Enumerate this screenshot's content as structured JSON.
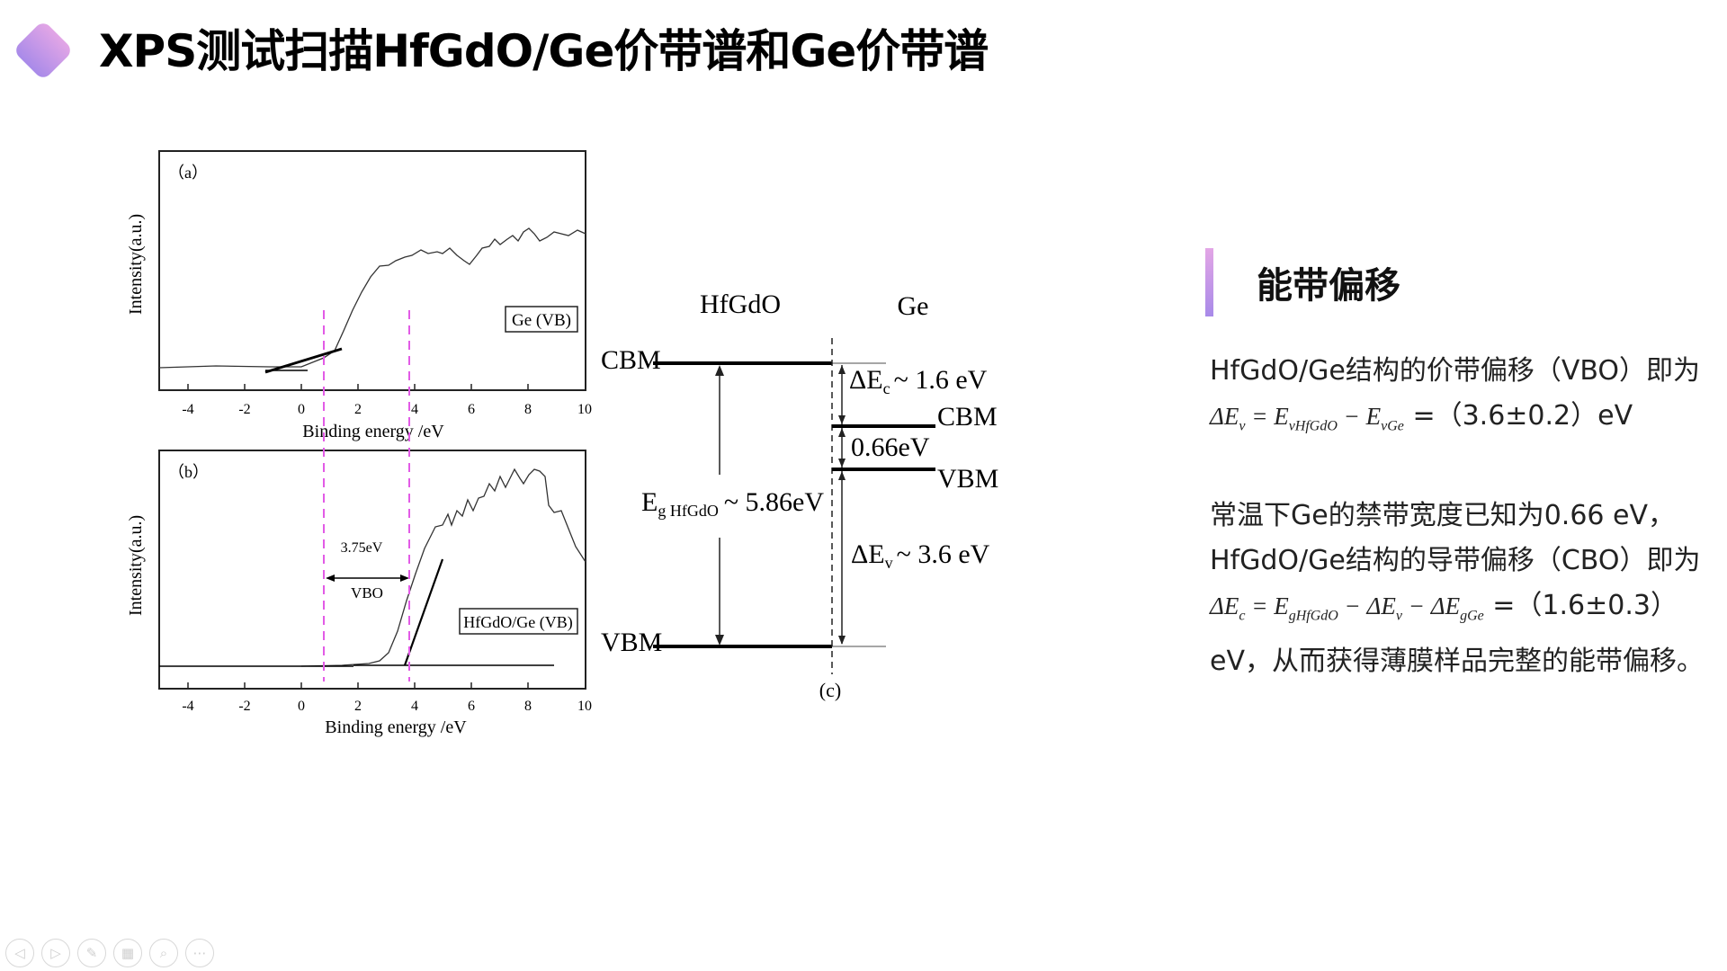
{
  "slide": {
    "title": "XPS测试扫描HfGdO/Ge价带谱和Ge价带谱",
    "accent_colors": [
      "#e3a6e6",
      "#a88ae9"
    ]
  },
  "figure": {
    "panel_a": {
      "label": "（a）",
      "ylabel": "Intensity(a.u.)",
      "xlabel": "Binding energy /eV",
      "xticks": [
        "-4",
        "-2",
        "0",
        "2",
        "4",
        "6",
        "8",
        "10"
      ],
      "legend": "Ge (VB)"
    },
    "panel_b": {
      "label": "（b）",
      "ylabel": "Intensity(a.u.)",
      "xlabel": "Binding energy /eV",
      "xticks": [
        "-4",
        "-2",
        "0",
        "2",
        "4",
        "6",
        "8",
        "10"
      ],
      "legend": "HfGdO/Ge (VB)",
      "gap_value": "3.75eV",
      "gap_label": "VBO"
    },
    "panel_c": {
      "label": "(c)",
      "left_material": "HfGdO",
      "right_material": "Ge",
      "left_cbm": "CBM",
      "left_vbm": "VBM",
      "right_cbm": "CBM",
      "right_vbm": "VBM",
      "eg_prefix": "E",
      "eg_sub": "g HfGdO",
      "eg_value": "~ 5.86eV",
      "dec_delta": "ΔE",
      "dec_sub": "c",
      "dec_value": "~ 1.6  eV",
      "ge_gap": "0.66eV",
      "dev_delta": "ΔE",
      "dev_sub": "v",
      "dev_value": "~ 3.6  eV"
    },
    "dashed_line_color": "#e25be6"
  },
  "panel": {
    "heading": "能带偏移",
    "p1_text": "HfGdO/Ge结构的价带偏移（VBO）即为",
    "p1_eq": {
      "lhs": "ΔE",
      "lhs_sub": "v",
      "eq": " = ",
      "t1": "E",
      "t1_sub": "vHfGdO",
      "minus": " − ",
      "t2": "E",
      "t2_sub": "vGe"
    },
    "p1_result": "   =（3.6±0.2）eV",
    "p2_line1": "常温下Ge的禁带宽度已知为0.66 eV，HfGdO/Ge结构的导带偏移（CBO）即为",
    "p2_eq": {
      "lhs": "ΔE",
      "lhs_sub": "c",
      "eq": " = ",
      "t1": "E",
      "t1_sub": "gHfGdO",
      "minus1": " − ",
      "t2": "ΔE",
      "t2_sub": "v",
      "minus2": " − ",
      "t3": "ΔE",
      "t3_sub": "gGe"
    },
    "p2_equals": "   =",
    "p2_result": "（1.6±0.3）eV，从而获得薄膜样品完整的能带偏移。"
  },
  "nav": {
    "buttons": [
      {
        "name": "prev-icon",
        "glyph": "◁"
      },
      {
        "name": "next-icon",
        "glyph": "▷"
      },
      {
        "name": "pen-icon",
        "glyph": "✎"
      },
      {
        "name": "slides-icon",
        "glyph": "▦"
      },
      {
        "name": "zoom-icon",
        "glyph": "⌕"
      },
      {
        "name": "more-icon",
        "glyph": "⋯"
      }
    ]
  }
}
